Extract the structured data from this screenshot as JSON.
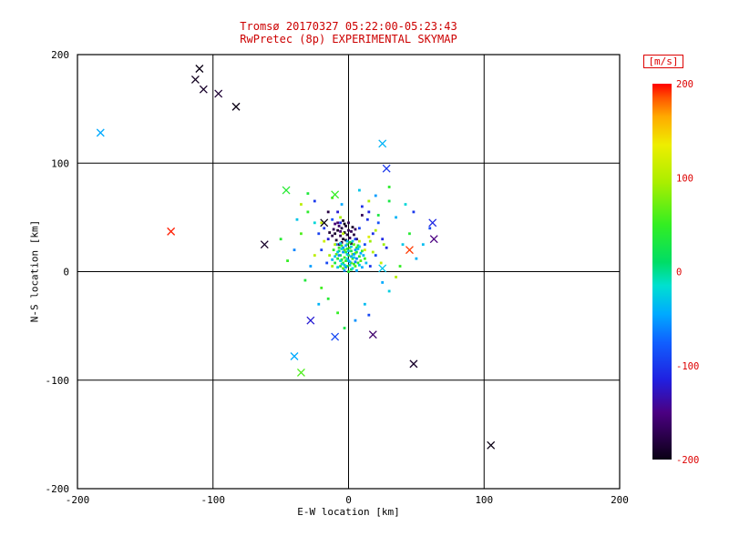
{
  "colors": {
    "background": "#ffffff",
    "title": "#cc0000",
    "axis_text": "#000000",
    "axis_line": "#000000",
    "colorbar_text": "#dd0000"
  },
  "chart_data": {
    "type": "scatter",
    "title": "Tromsø 20170327 05:22:00-05:23:43",
    "subtitle": "RwPretec (8p) EXPERIMENTAL SKYMAP",
    "xlabel": "E-W location [km]",
    "ylabel": "N-S location [km]",
    "xlim": [
      -200,
      200
    ],
    "ylim": [
      -200,
      200
    ],
    "xticks": [
      -200,
      -100,
      0,
      100,
      200
    ],
    "yticks": [
      -200,
      -100,
      0,
      100,
      200
    ],
    "grid": true,
    "colorbar": {
      "label": "[m/s]",
      "min": -200,
      "max": 200,
      "ticks": [
        200,
        100,
        0,
        -100,
        -200
      ],
      "stops": [
        [
          -200,
          "#0a0014"
        ],
        [
          -150,
          "#4b0082"
        ],
        [
          -115,
          "#2020e0"
        ],
        [
          -75,
          "#1060ff"
        ],
        [
          -45,
          "#00aaff"
        ],
        [
          -15,
          "#00e0d0"
        ],
        [
          10,
          "#00dd66"
        ],
        [
          50,
          "#33ee22"
        ],
        [
          95,
          "#aaee00"
        ],
        [
          135,
          "#eeee00"
        ],
        [
          165,
          "#ffaa00"
        ],
        [
          185,
          "#ff5500"
        ],
        [
          200,
          "#ff0000"
        ]
      ]
    },
    "series": [
      {
        "name": "echo-dots",
        "marker": "dot",
        "points": [
          [
            -8,
            38,
            -190
          ],
          [
            -5,
            40,
            -180
          ],
          [
            -3,
            36,
            -200
          ],
          [
            -6,
            33,
            -170
          ],
          [
            -2,
            42,
            -185
          ],
          [
            0,
            38,
            -175
          ],
          [
            -10,
            35,
            -190
          ],
          [
            -7,
            42,
            -160
          ],
          [
            -4,
            30,
            -195
          ],
          [
            -1,
            34,
            -180
          ],
          [
            2,
            37,
            -170
          ],
          [
            -9,
            29,
            -185
          ],
          [
            -12,
            33,
            -175
          ],
          [
            3,
            41,
            -190
          ],
          [
            -6,
            37,
            -155
          ],
          [
            -3,
            44,
            -200
          ],
          [
            1,
            31,
            -165
          ],
          [
            -5,
            27,
            -180
          ],
          [
            -11,
            39,
            -170
          ],
          [
            -2,
            29,
            -190
          ],
          [
            4,
            34,
            -180
          ],
          [
            -8,
            45,
            -160
          ],
          [
            0,
            45,
            -175
          ],
          [
            -14,
            36,
            -185
          ],
          [
            5,
            39,
            -165
          ],
          [
            -4,
            47,
            -190
          ],
          [
            -7,
            25,
            -170
          ],
          [
            2,
            26,
            -185
          ],
          [
            -10,
            44,
            -155
          ],
          [
            6,
            30,
            -175
          ],
          [
            -2,
            18,
            40
          ],
          [
            3,
            12,
            55
          ],
          [
            -6,
            15,
            30
          ],
          [
            1,
            22,
            60
          ],
          [
            -4,
            8,
            45
          ],
          [
            6,
            18,
            35
          ],
          [
            -1,
            5,
            50
          ],
          [
            4,
            25,
            70
          ],
          [
            -8,
            12,
            40
          ],
          [
            2,
            2,
            30
          ],
          [
            -3,
            20,
            65
          ],
          [
            7,
            8,
            45
          ],
          [
            -5,
            24,
            55
          ],
          [
            0,
            15,
            35
          ],
          [
            5,
            5,
            60
          ],
          [
            -7,
            19,
            25
          ],
          [
            3,
            16,
            75
          ],
          [
            -2,
            10,
            50
          ],
          [
            8,
            14,
            40
          ],
          [
            -10,
            8,
            30
          ],
          [
            1,
            27,
            45
          ],
          [
            -4,
            3,
            65
          ],
          [
            6,
            22,
            55
          ],
          [
            -1,
            25,
            35
          ],
          [
            9,
            10,
            60
          ],
          [
            -6,
            5,
            45
          ],
          [
            2,
            19,
            25
          ],
          [
            -9,
            16,
            70
          ],
          [
            4,
            7,
            50
          ],
          [
            0,
            0,
            40
          ],
          [
            -3,
            13,
            55
          ],
          [
            7,
            24,
            30
          ],
          [
            -11,
            20,
            45
          ],
          [
            5,
            17,
            65
          ],
          [
            -1,
            21,
            40
          ],
          [
            10,
            19,
            50
          ],
          [
            -5,
            11,
            35
          ],
          [
            2,
            8,
            60
          ],
          [
            -7,
            22,
            45
          ],
          [
            12,
            12,
            55
          ],
          [
            -3,
            6,
            -30
          ],
          [
            2,
            14,
            -45
          ],
          [
            -6,
            10,
            -20
          ],
          [
            5,
            20,
            -50
          ],
          [
            -1,
            16,
            -35
          ],
          [
            8,
            6,
            -25
          ],
          [
            -4,
            22,
            -55
          ],
          [
            1,
            9,
            -40
          ],
          [
            -8,
            18,
            -30
          ],
          [
            3,
            3,
            -20
          ],
          [
            -2,
            24,
            -45
          ],
          [
            6,
            12,
            -60
          ],
          [
            -5,
            7,
            -25
          ],
          [
            0,
            19,
            -35
          ],
          [
            4,
            16,
            -50
          ],
          [
            -10,
            14,
            -30
          ],
          [
            7,
            21,
            -40
          ],
          [
            -3,
            1,
            -55
          ],
          [
            2,
            23,
            -25
          ],
          [
            -6,
            26,
            -35
          ],
          [
            9,
            17,
            -45
          ],
          [
            -1,
            12,
            -20
          ],
          [
            5,
            9,
            -60
          ],
          [
            -8,
            4,
            -30
          ],
          [
            11,
            15,
            -40
          ],
          [
            -4,
            18,
            -50
          ],
          [
            1,
            6,
            -25
          ],
          [
            -12,
            11,
            -35
          ],
          [
            6,
            1,
            -45
          ],
          [
            3,
            28,
            -30
          ],
          [
            -7,
            15,
            -55
          ],
          [
            0,
            10,
            -40
          ],
          [
            8,
            23,
            -20
          ],
          [
            -2,
            4,
            -50
          ],
          [
            13,
            8,
            -35
          ],
          [
            -5,
            21,
            -25
          ],
          [
            10,
            4,
            -45
          ],
          [
            -9,
            25,
            -60
          ],
          [
            4,
            13,
            -30
          ],
          [
            -1,
            28,
            -40
          ],
          [
            5,
            30,
            -100
          ],
          [
            -6,
            45,
            -110
          ],
          [
            12,
            25,
            -90
          ],
          [
            -15,
            30,
            -120
          ],
          [
            8,
            40,
            -95
          ],
          [
            18,
            35,
            -105
          ],
          [
            -12,
            48,
            -85
          ],
          [
            15,
            55,
            -115
          ],
          [
            -18,
            40,
            -100
          ],
          [
            20,
            15,
            -90
          ],
          [
            25,
            30,
            -110
          ],
          [
            -20,
            20,
            -95
          ],
          [
            10,
            60,
            -105
          ],
          [
            -8,
            55,
            -120
          ],
          [
            22,
            45,
            -85
          ],
          [
            16,
            5,
            -100
          ],
          [
            -16,
            8,
            -90
          ],
          [
            28,
            22,
            -110
          ],
          [
            -22,
            35,
            -95
          ],
          [
            14,
            48,
            -105
          ],
          [
            -10,
            25,
            100
          ],
          [
            8,
            28,
            110
          ],
          [
            -14,
            15,
            95
          ],
          [
            12,
            20,
            120
          ],
          [
            -4,
            35,
            105
          ],
          [
            16,
            28,
            90
          ],
          [
            -18,
            28,
            115
          ],
          [
            20,
            38,
            100
          ],
          [
            -6,
            50,
            95
          ],
          [
            24,
            8,
            110
          ],
          [
            -25,
            15,
            105
          ],
          [
            15,
            32,
            125
          ],
          [
            -12,
            5,
            95
          ],
          [
            18,
            18,
            100
          ],
          [
            -20,
            45,
            110
          ],
          [
            26,
            25,
            90
          ],
          [
            -30,
            55,
            45
          ],
          [
            35,
            50,
            -40
          ],
          [
            -25,
            65,
            -100
          ],
          [
            30,
            65,
            30
          ],
          [
            -35,
            35,
            60
          ],
          [
            40,
            25,
            -30
          ],
          [
            -28,
            5,
            -50
          ],
          [
            38,
            5,
            50
          ],
          [
            -32,
            -8,
            35
          ],
          [
            25,
            -10,
            -45
          ],
          [
            -20,
            -15,
            55
          ],
          [
            30,
            -18,
            -25
          ],
          [
            -15,
            -25,
            40
          ],
          [
            12,
            -30,
            -35
          ],
          [
            -8,
            -38,
            50
          ],
          [
            5,
            -45,
            -55
          ],
          [
            -3,
            -52,
            30
          ],
          [
            15,
            -40,
            -90
          ],
          [
            -22,
            -30,
            -40
          ],
          [
            35,
            -5,
            100
          ],
          [
            -40,
            20,
            -60
          ],
          [
            45,
            35,
            40
          ],
          [
            -38,
            48,
            -30
          ],
          [
            48,
            55,
            -100
          ],
          [
            -45,
            10,
            50
          ],
          [
            50,
            12,
            -40
          ],
          [
            -35,
            62,
            105
          ],
          [
            42,
            62,
            -20
          ],
          [
            -30,
            72,
            35
          ],
          [
            20,
            70,
            -50
          ],
          [
            -12,
            68,
            60
          ],
          [
            8,
            75,
            -30
          ],
          [
            30,
            78,
            45
          ],
          [
            -5,
            62,
            -45
          ],
          [
            15,
            65,
            95
          ],
          [
            55,
            25,
            -35
          ],
          [
            60,
            40,
            -90
          ],
          [
            -50,
            30,
            40
          ],
          [
            -15,
            55,
            -180
          ],
          [
            10,
            52,
            -170
          ],
          [
            22,
            52,
            30
          ],
          [
            -25,
            45,
            -20
          ]
        ]
      },
      {
        "name": "echo-crosses",
        "marker": "x",
        "points": [
          [
            -62,
            25,
            -190
          ],
          [
            -18,
            45,
            -200
          ],
          [
            25,
            3,
            -30
          ],
          [
            -28,
            -45,
            -120
          ],
          [
            18,
            -58,
            -160
          ],
          [
            -10,
            -60,
            -90
          ],
          [
            62,
            45,
            -110
          ],
          [
            63,
            30,
            -150
          ],
          [
            -46,
            75,
            40
          ],
          [
            -10,
            71,
            50
          ],
          [
            45,
            20,
            190
          ],
          [
            28,
            95,
            -100
          ],
          [
            25,
            118,
            -40
          ],
          [
            -40,
            -78,
            -45
          ],
          [
            -35,
            -93,
            60
          ],
          [
            48,
            -85,
            -190
          ],
          [
            105,
            -160,
            -200
          ],
          [
            -131,
            37,
            195
          ],
          [
            -183,
            128,
            -45
          ],
          [
            -110,
            187,
            -200
          ],
          [
            -113,
            177,
            -195
          ],
          [
            -107,
            168,
            -190
          ],
          [
            -96,
            164,
            -185
          ],
          [
            -83,
            152,
            -200
          ]
        ]
      }
    ]
  }
}
